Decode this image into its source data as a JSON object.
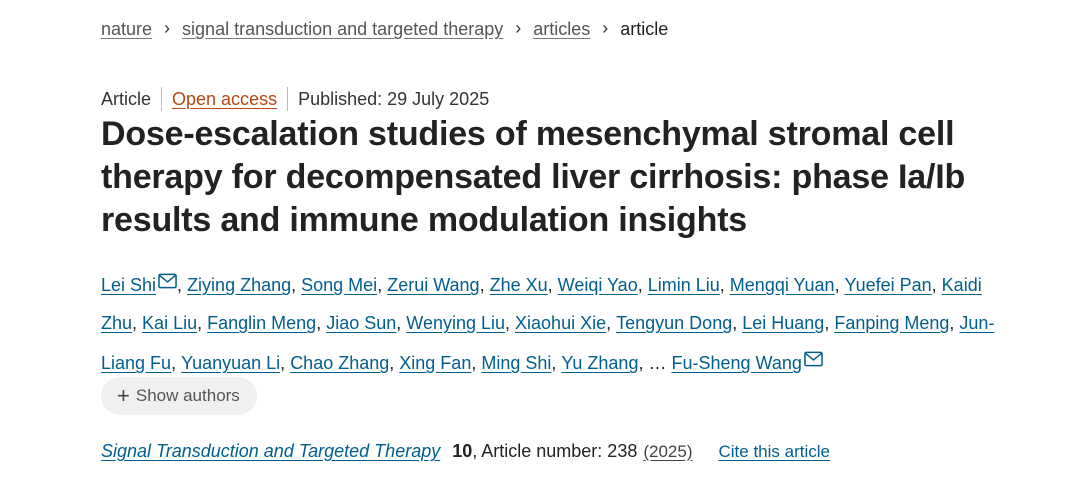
{
  "breadcrumb": {
    "items": [
      "nature",
      "signal transduction and targeted therapy",
      "articles"
    ],
    "current": "article",
    "separator": "›"
  },
  "meta": {
    "type": "Article",
    "open_access": "Open access",
    "published": "Published: 29 July 2025"
  },
  "title": "Dose-escalation studies of mesenchymal stromal cell therapy for decompensated liver cirrhosis: phase Ia/Ib results and immune modulation insights",
  "authors": [
    {
      "name": "Lei Shi",
      "corresponding": true
    },
    {
      "name": "Ziying Zhang"
    },
    {
      "name": "Song Mei"
    },
    {
      "name": "Zerui Wang"
    },
    {
      "name": "Zhe Xu"
    },
    {
      "name": "Weiqi Yao"
    },
    {
      "name": "Limin Liu"
    },
    {
      "name": "Mengqi Yuan"
    },
    {
      "name": "Yuefei Pan"
    },
    {
      "name": "Kaidi Zhu"
    },
    {
      "name": "Kai Liu"
    },
    {
      "name": "Fanglin Meng"
    },
    {
      "name": "Jiao Sun"
    },
    {
      "name": "Wenying Liu"
    },
    {
      "name": "Xiaohui Xie"
    },
    {
      "name": "Tengyun Dong"
    },
    {
      "name": "Lei Huang"
    },
    {
      "name": "Fanping Meng"
    },
    {
      "name": "Jun-Liang Fu"
    },
    {
      "name": "Yuanyuan Li"
    },
    {
      "name": "Chao Zhang"
    },
    {
      "name": "Xing Fan"
    },
    {
      "name": "Ming Shi"
    },
    {
      "name": "Yu Zhang"
    },
    {
      "name": "Fu-Sheng Wang",
      "corresponding": true
    }
  ],
  "authors_ellipsis": "…",
  "show_authors": {
    "icon": "plus-icon",
    "label": "Show authors"
  },
  "citation": {
    "journal": "Signal Transduction and Targeted Therapy",
    "volume": "10",
    "article_number": ", Article number: 238",
    "year": "(2025)",
    "cite_label": "Cite this article"
  },
  "colors": {
    "link": "#025e8d",
    "open_access": "#b74616",
    "text": "#222222",
    "button_bg": "#eef0f2"
  }
}
